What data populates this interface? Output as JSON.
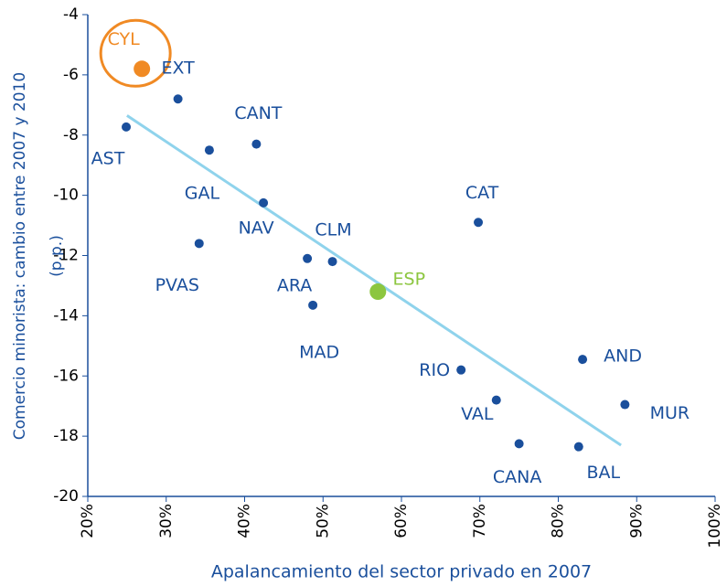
{
  "chart_data": {
    "type": "scatter",
    "xlabel": "Apalancamiento del sector privado en 2007",
    "ylabel_lines": [
      "Comercio minorista: cambio entre 2007 y 2010",
      "(p.p.)"
    ],
    "labels": [
      "CYL",
      "EXT",
      "AST",
      "CANT",
      "GAL",
      "NAV",
      "CAT",
      "PVAS",
      "CLM",
      "ARA",
      "MAD",
      "ESP",
      "RIO",
      "AND",
      "VAL",
      "MUR",
      "CANA",
      "BAL"
    ],
    "x": [
      26.9,
      31.5,
      24.9,
      41.5,
      35.5,
      42.4,
      69.8,
      34.2,
      51.2,
      48.0,
      48.7,
      57.0,
      67.6,
      83.1,
      72.1,
      88.5,
      75.0,
      82.6
    ],
    "values": [
      -5.8,
      -6.8,
      -7.73,
      -8.3,
      -8.5,
      -10.25,
      -10.9,
      -11.6,
      -12.2,
      -12.1,
      -13.65,
      -13.2,
      -15.8,
      -15.45,
      -16.8,
      -16.95,
      -18.25,
      -18.35
    ],
    "color": "#1a4f9c",
    "colors": [
      "#f08a24",
      "#1a4f9c",
      "#1a4f9c",
      "#1a4f9c",
      "#1a4f9c",
      "#1a4f9c",
      "#1a4f9c",
      "#1a4f9c",
      "#1a4f9c",
      "#1a4f9c",
      "#1a4f9c",
      "#8cc63f",
      "#1a4f9c",
      "#1a4f9c",
      "#1a4f9c",
      "#1a4f9c",
      "#1a4f9c",
      "#1a4f9c"
    ],
    "trendline": {
      "x": [
        25,
        88
      ],
      "values": [
        -7.35,
        -18.3
      ],
      "color": "#8fd3ec"
    },
    "xlim": [
      20,
      100
    ],
    "xticks": [
      {
        "value": 20,
        "label": "20%"
      },
      {
        "value": 30,
        "label": "30%"
      },
      {
        "value": 40,
        "label": "40%"
      },
      {
        "value": 50,
        "label": "50%"
      },
      {
        "value": 60,
        "label": "60%"
      },
      {
        "value": 70,
        "label": "70%"
      },
      {
        "value": 80,
        "label": "80%"
      },
      {
        "value": 90,
        "label": "90%"
      },
      {
        "value": 100,
        "label": "100%"
      }
    ],
    "ylim": [
      -20,
      -4
    ],
    "yticks": [
      -20,
      -18,
      -16,
      -14,
      -12,
      -10,
      -8,
      -6,
      -4
    ]
  }
}
